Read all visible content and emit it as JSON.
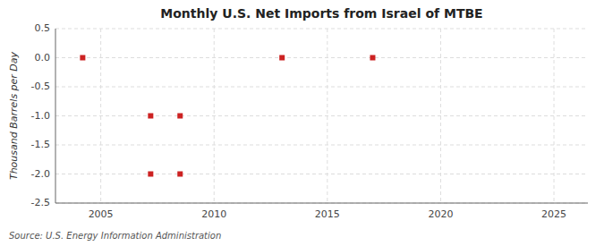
{
  "chart_data": {
    "type": "scatter",
    "title": "Monthly U.S. Net Imports from Israel of MTBE",
    "ylabel": "Thousand Barrels per Day",
    "source": "Source: U.S. Energy Information Administration",
    "x": [
      2004.2,
      2007.2,
      2007.2,
      2008.5,
      2008.5,
      2013.0,
      2017.0
    ],
    "values": [
      0.0,
      -1.0,
      -2.0,
      -1.0,
      -2.0,
      0.0,
      0.0
    ],
    "color": "#cc2222",
    "marker": "square",
    "xlim": [
      2003.0,
      2026.5
    ],
    "ylim": [
      -2.5,
      0.5
    ],
    "xticks": [
      2005,
      2010,
      2015,
      2020,
      2025
    ],
    "yticks": [
      0.5,
      {
        "value": 0.0,
        "label": "0.0"
      },
      -0.5,
      {
        "value": -1.0,
        "label": "-1.0"
      },
      -1.5,
      {
        "value": -2.0,
        "label": "-2.0"
      },
      -2.5
    ],
    "grid": true
  }
}
